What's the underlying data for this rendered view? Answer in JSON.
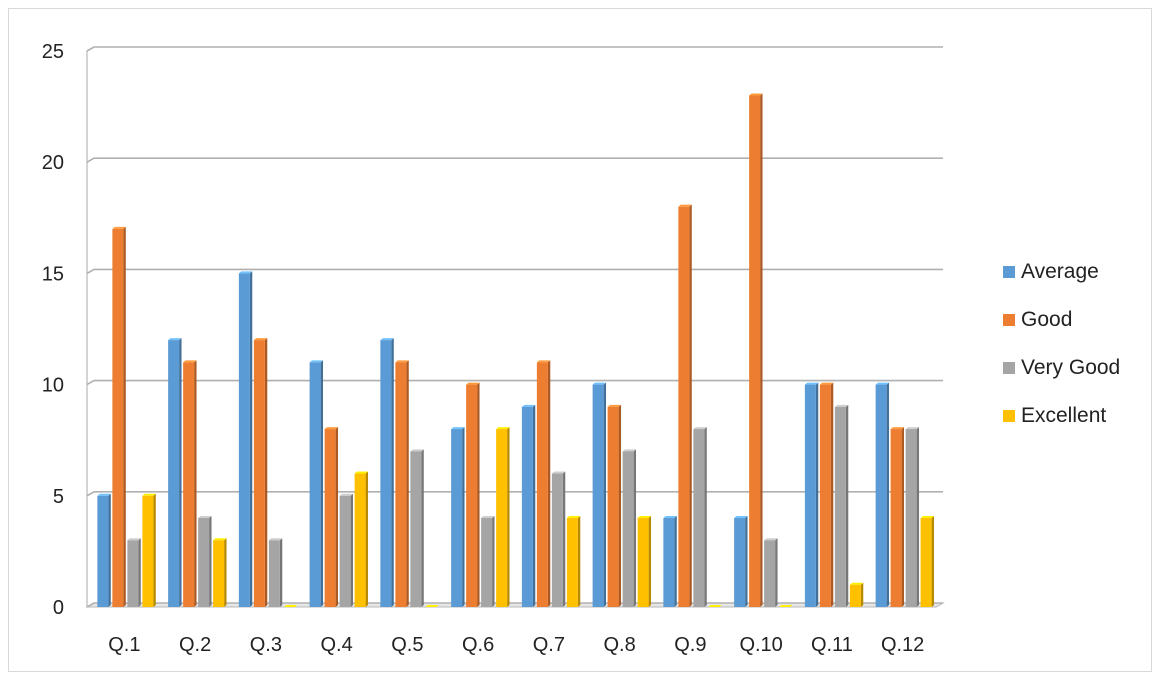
{
  "chart_data": {
    "type": "bar",
    "title": "",
    "xlabel": "",
    "ylabel": "",
    "ylim": [
      0,
      25
    ],
    "yticks": [
      0,
      5,
      10,
      15,
      20,
      25
    ],
    "grid": true,
    "legend_position": "right",
    "categories": [
      "Q.1",
      "Q.2",
      "Q.3",
      "Q.4",
      "Q.5",
      "Q.6",
      "Q.7",
      "Q.8",
      "Q.9",
      "Q.10",
      "Q.11",
      "Q.12"
    ],
    "series": [
      {
        "name": "Average",
        "color": "#5b9bd5",
        "values": [
          5,
          12,
          15,
          11,
          12,
          8,
          9,
          10,
          4,
          4,
          10,
          10
        ]
      },
      {
        "name": "Good",
        "color": "#ed7d31",
        "values": [
          17,
          11,
          12,
          8,
          11,
          10,
          11,
          9,
          18,
          23,
          10,
          8
        ]
      },
      {
        "name": "Very Good",
        "color": "#a5a5a5",
        "values": [
          3,
          4,
          3,
          5,
          7,
          4,
          6,
          7,
          8,
          3,
          9,
          8
        ]
      },
      {
        "name": "Excellent",
        "color": "#ffc000",
        "values": [
          5,
          3,
          0,
          6,
          0,
          8,
          4,
          4,
          0,
          0,
          1,
          4
        ]
      }
    ]
  }
}
